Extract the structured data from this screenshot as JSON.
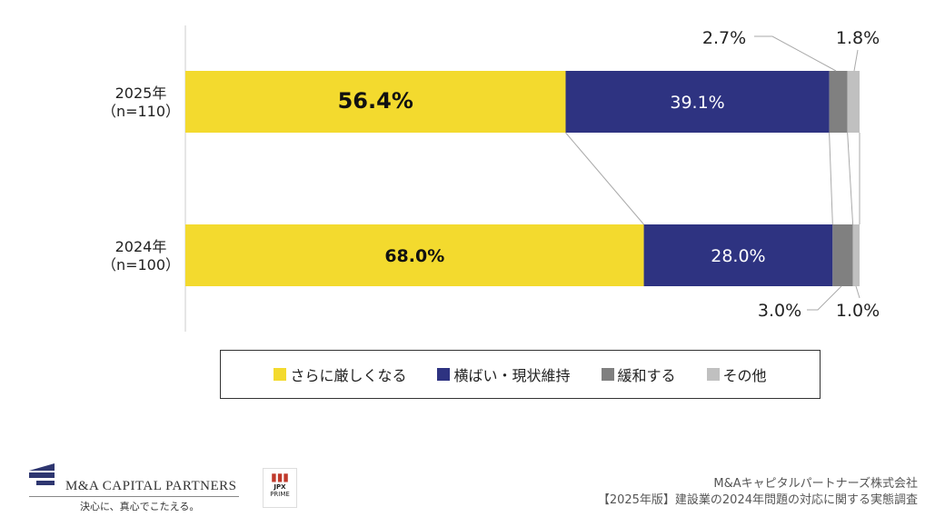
{
  "chart_data": {
    "type": "bar",
    "orientation": "horizontal",
    "stacked": true,
    "normalized": true,
    "categories": [
      "2025年\n（n=110）",
      "2024年\n（n=100）"
    ],
    "series": [
      {
        "name": "さらに厳しくなる",
        "color": "#f3da2e",
        "values": [
          56.4,
          68.0
        ],
        "labels": [
          "56.4%",
          "68.0%"
        ]
      },
      {
        "name": "横ばい・現状維持",
        "color": "#2e3381",
        "values": [
          39.1,
          28.0
        ],
        "labels": [
          "39.1%",
          "28.0%"
        ]
      },
      {
        "name": "緩和する",
        "color": "#808080",
        "values": [
          2.7,
          3.0
        ],
        "labels": [
          "2.7%",
          "3.0%"
        ]
      },
      {
        "name": "その他",
        "color": "#c0c0c0",
        "values": [
          1.8,
          1.0
        ],
        "labels": [
          "1.8%",
          "1.0%"
        ]
      }
    ],
    "xlim": [
      0,
      100
    ],
    "legend": "bottom",
    "grid": false
  },
  "footer": {
    "company": "M&Aキャピタルパートナーズ株式会社",
    "survey": "【2025年版】建設業の2024年問題の対応に関する実態調査"
  },
  "logo": {
    "brand": "M&A CAPITAL PARTNERS",
    "tagline": "決心に、真心でこたえる。",
    "jpx": "JPX",
    "jpx_sub": "PRIME"
  }
}
